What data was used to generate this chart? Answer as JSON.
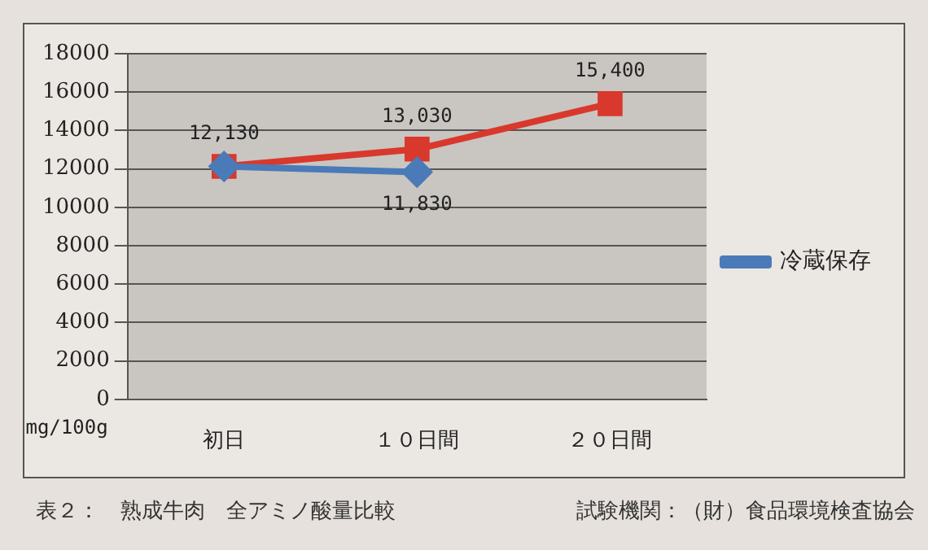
{
  "chart_data": {
    "type": "line",
    "title": "表２：　熟成牛肉　全アミノ酸量比較",
    "ylabel": "mg/100g",
    "annotations": [
      "試験機関：（財）食品環境検査協会"
    ],
    "categories": [
      "初日",
      "１０日間",
      "２０日間"
    ],
    "series": [
      {
        "name": "冷蔵保存",
        "color": "#4a7ab8",
        "marker": "diamond",
        "values": [
          12130,
          11830,
          null
        ],
        "value_labels": [
          null,
          "11,830",
          null
        ]
      },
      {
        "color": "#d9382c",
        "marker": "square",
        "values": [
          12130,
          13030,
          15400
        ],
        "value_labels": [
          "12,130",
          "13,030",
          "15,400"
        ]
      }
    ],
    "ylim": [
      0,
      18000
    ],
    "yticks": [
      0,
      2000,
      4000,
      6000,
      8000,
      10000,
      12000,
      14000,
      16000,
      18000
    ],
    "grid": "y",
    "legend": "right"
  }
}
